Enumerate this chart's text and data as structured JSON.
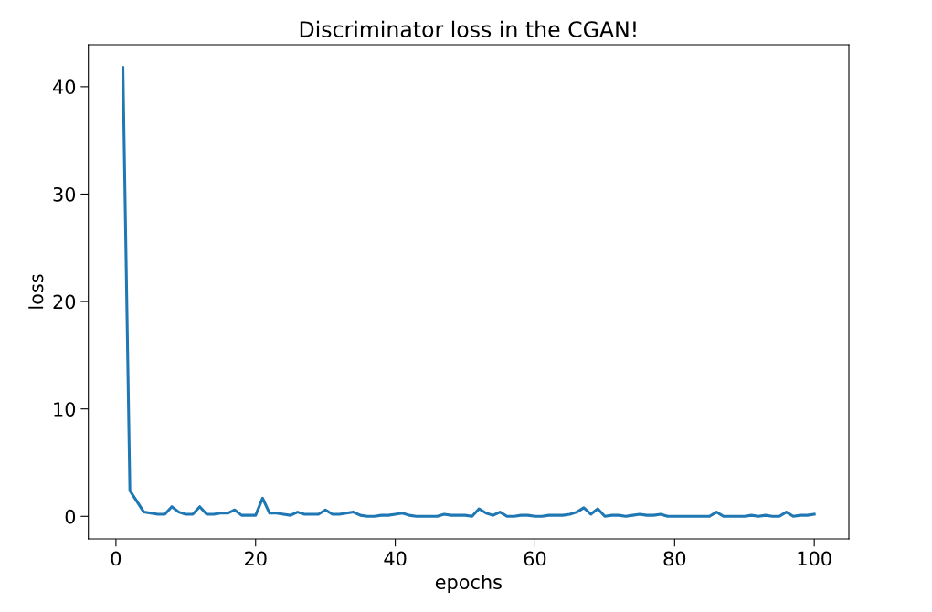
{
  "chart_data": {
    "type": "line",
    "title": "Discriminator loss in the CGAN!",
    "xlabel": "epochs",
    "ylabel": "loss",
    "x": [
      1,
      2,
      3,
      4,
      5,
      6,
      7,
      8,
      9,
      10,
      11,
      12,
      13,
      14,
      15,
      16,
      17,
      18,
      19,
      20,
      21,
      22,
      23,
      24,
      25,
      26,
      27,
      28,
      29,
      30,
      31,
      32,
      33,
      34,
      35,
      36,
      37,
      38,
      39,
      40,
      41,
      42,
      43,
      44,
      45,
      46,
      47,
      48,
      49,
      50,
      51,
      52,
      53,
      54,
      55,
      56,
      57,
      58,
      59,
      60,
      61,
      62,
      63,
      64,
      65,
      66,
      67,
      68,
      69,
      70,
      71,
      72,
      73,
      74,
      75,
      76,
      77,
      78,
      79,
      80,
      81,
      82,
      83,
      84,
      85,
      86,
      87,
      88,
      89,
      90,
      91,
      92,
      93,
      94,
      95,
      96,
      97,
      98,
      99,
      100
    ],
    "series": [
      {
        "color": "#1f77b4",
        "values": [
          41.8,
          2.4,
          1.4,
          0.4,
          0.3,
          0.2,
          0.2,
          0.9,
          0.4,
          0.2,
          0.2,
          0.9,
          0.2,
          0.2,
          0.3,
          0.3,
          0.6,
          0.1,
          0.1,
          0.1,
          1.7,
          0.3,
          0.3,
          0.2,
          0.1,
          0.4,
          0.2,
          0.2,
          0.2,
          0.6,
          0.2,
          0.2,
          0.3,
          0.4,
          0.1,
          0.0,
          0.0,
          0.1,
          0.1,
          0.2,
          0.3,
          0.1,
          0.0,
          0.0,
          0.0,
          0.0,
          0.2,
          0.1,
          0.1,
          0.1,
          0.0,
          0.7,
          0.3,
          0.1,
          0.4,
          0.0,
          0.0,
          0.1,
          0.1,
          0.0,
          0.0,
          0.1,
          0.1,
          0.1,
          0.2,
          0.4,
          0.8,
          0.2,
          0.7,
          0.0,
          0.1,
          0.1,
          0.0,
          0.1,
          0.2,
          0.1,
          0.1,
          0.2,
          0.0,
          0.0,
          0.0,
          0.0,
          0.0,
          0.0,
          0.0,
          0.4,
          0.0,
          0.0,
          0.0,
          0.0,
          0.1,
          0.0,
          0.1,
          0.0,
          0.0,
          0.4,
          0.0,
          0.1,
          0.1,
          0.2
        ]
      }
    ],
    "xlim": [
      -3.95,
      104.95
    ],
    "ylim": [
      -2.1,
      43.9
    ],
    "xticks": [
      0,
      20,
      40,
      60,
      80,
      100
    ],
    "yticks": [
      0,
      10,
      20,
      30,
      40
    ],
    "grid": false,
    "marker": "none",
    "line_style": "solid"
  }
}
